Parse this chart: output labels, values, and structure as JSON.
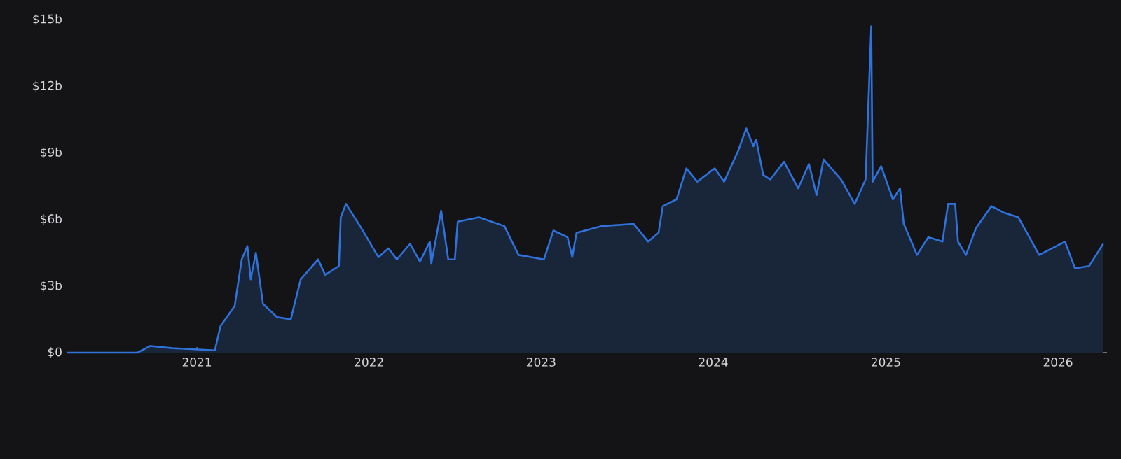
{
  "chart_data": {
    "type": "area",
    "xlim": [
      "2020-04-01",
      "2026-04-15"
    ],
    "ylim": [
      0,
      15
    ],
    "grid": false,
    "xticks": [
      {
        "value": "2021-01-01",
        "label": "2021"
      },
      {
        "value": "2022-01-01",
        "label": "2022"
      },
      {
        "value": "2023-01-01",
        "label": "2023"
      },
      {
        "value": "2024-01-01",
        "label": "2024"
      },
      {
        "value": "2025-01-01",
        "label": "2025"
      },
      {
        "value": "2026-01-01",
        "label": "2026"
      }
    ],
    "yticks": [
      {
        "value": 0,
        "label": "$0"
      },
      {
        "value": 3,
        "label": "$3b"
      },
      {
        "value": 6,
        "label": "$6b"
      },
      {
        "value": 9,
        "label": "$9b"
      },
      {
        "value": 12,
        "label": "$12b"
      },
      {
        "value": 15,
        "label": "$15b"
      }
    ],
    "series": [
      {
        "color": "#2f72db",
        "x": [
          "2020-04-01",
          "2020-08-28",
          "2020-09-24",
          "2020-11-10",
          "2021-02-08",
          "2021-02-20",
          "2021-03-22",
          "2021-04-06",
          "2021-04-18",
          "2021-04-25",
          "2021-05-06",
          "2021-05-21",
          "2021-06-20",
          "2021-07-19",
          "2021-08-09",
          "2021-09-15",
          "2021-09-30",
          "2021-10-29",
          "2021-11-02",
          "2021-11-13",
          "2021-12-13",
          "2022-01-21",
          "2022-02-11",
          "2022-03-01",
          "2022-03-29",
          "2022-04-19",
          "2022-05-10",
          "2022-05-13",
          "2022-06-03",
          "2022-06-18",
          "2022-07-02",
          "2022-07-08",
          "2022-08-22",
          "2022-10-15",
          "2022-11-14",
          "2023-01-07",
          "2023-01-27",
          "2023-02-26",
          "2023-03-08",
          "2023-03-17",
          "2023-05-10",
          "2023-07-16",
          "2023-08-16",
          "2023-09-07",
          "2023-09-16",
          "2023-10-15",
          "2023-11-05",
          "2023-11-28",
          "2024-01-04",
          "2024-01-24",
          "2024-02-23",
          "2024-03-11",
          "2024-03-26",
          "2024-04-01",
          "2024-04-16",
          "2024-05-01",
          "2024-05-30",
          "2024-06-29",
          "2024-07-22",
          "2024-08-07",
          "2024-08-22",
          "2024-09-28",
          "2024-10-27",
          "2024-11-19",
          "2024-12-01",
          "2024-12-04",
          "2024-12-22",
          "2025-01-16",
          "2025-01-31",
          "2025-02-08",
          "2025-03-08",
          "2025-04-01",
          "2025-05-01",
          "2025-05-13",
          "2025-05-28",
          "2025-06-03",
          "2025-06-20",
          "2025-07-11",
          "2025-08-13",
          "2025-09-09",
          "2025-10-09",
          "2025-11-22",
          "2026-01-16",
          "2026-02-06",
          "2026-03-08",
          "2026-04-07"
        ],
        "values": [
          0,
          0,
          0.3,
          0.2,
          0.1,
          1.2,
          2.1,
          4.2,
          4.8,
          3.3,
          4.5,
          2.2,
          1.6,
          1.5,
          3.3,
          4.2,
          3.5,
          3.9,
          6.1,
          6.7,
          5.7,
          4.3,
          4.7,
          4.2,
          4.9,
          4.1,
          5.0,
          4.0,
          6.4,
          4.2,
          4.2,
          5.9,
          6.1,
          5.7,
          4.4,
          4.2,
          5.5,
          5.2,
          4.3,
          5.4,
          5.7,
          5.8,
          5.0,
          5.4,
          6.6,
          6.9,
          8.3,
          7.7,
          8.3,
          7.7,
          9.1,
          10.1,
          9.3,
          9.6,
          8.0,
          7.8,
          8.6,
          7.4,
          8.5,
          7.1,
          8.7,
          7.8,
          6.7,
          7.8,
          14.7,
          7.7,
          8.4,
          6.9,
          7.4,
          5.8,
          4.4,
          5.2,
          5.0,
          6.7,
          6.7,
          5.0,
          4.4,
          5.6,
          6.6,
          6.3,
          6.1,
          4.4,
          5.0,
          3.8,
          3.9,
          4.9
        ]
      }
    ]
  }
}
